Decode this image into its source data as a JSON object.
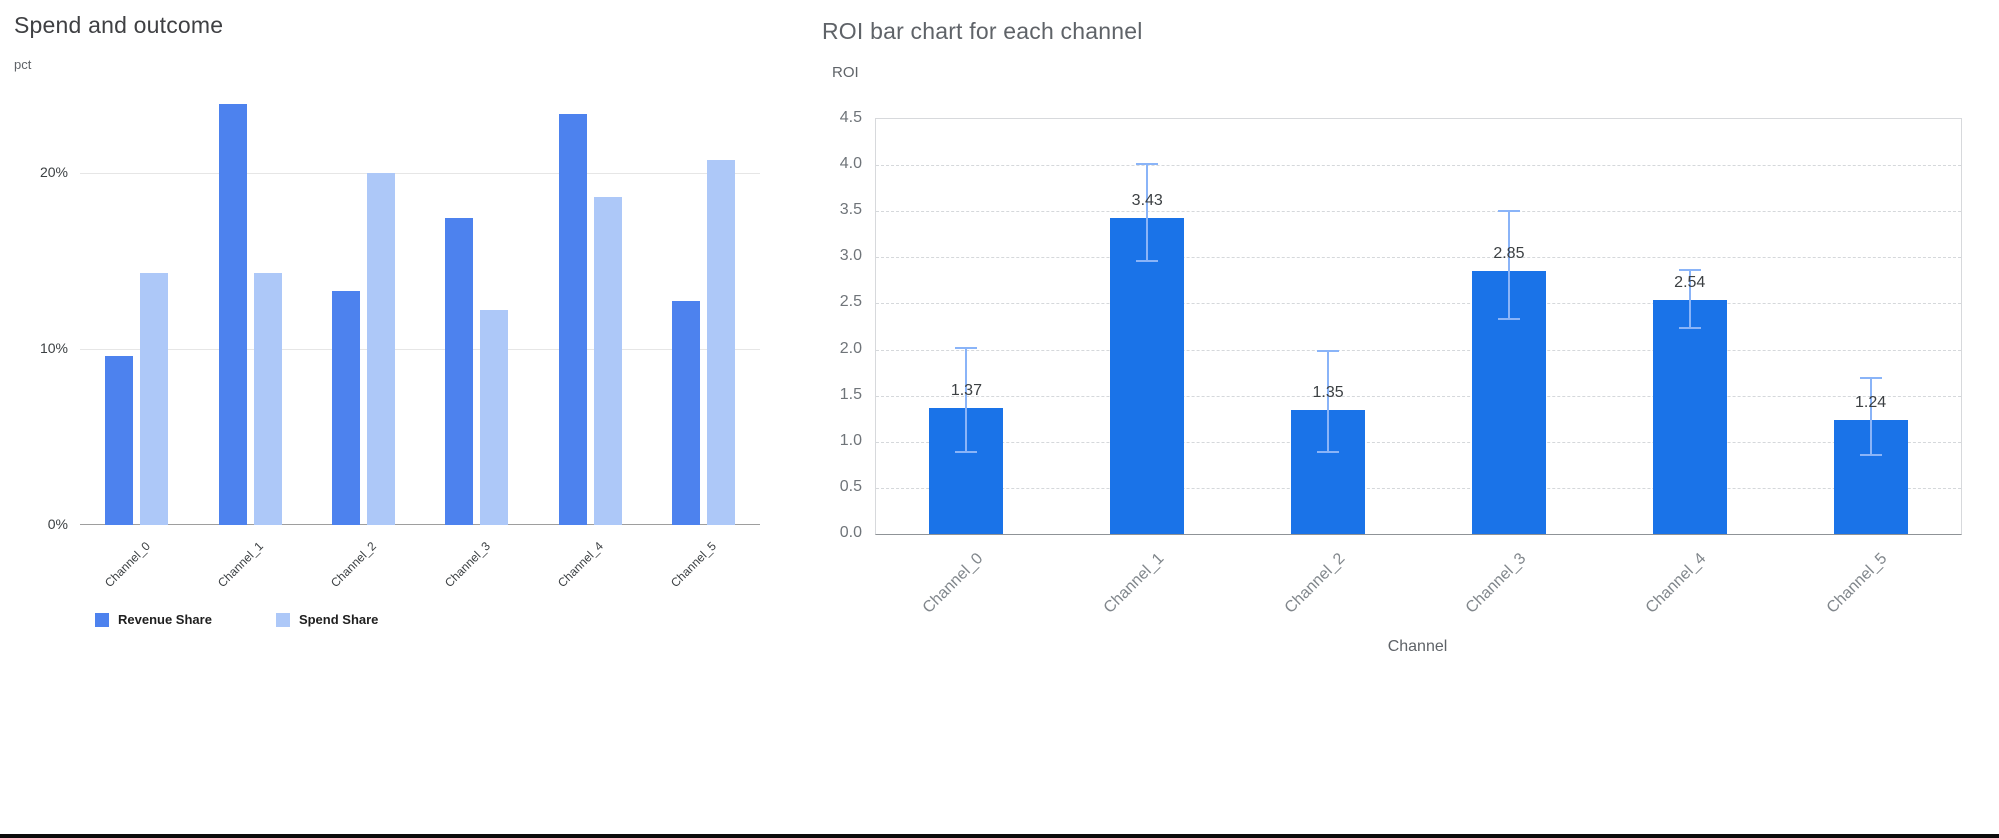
{
  "chart_data": [
    {
      "type": "bar",
      "title": "Spend and outcome",
      "ylabel": "pct",
      "xlabel": "",
      "categories": [
        "Channel_0",
        "Channel_1",
        "Channel_2",
        "Channel_3",
        "Channel_4",
        "Channel_5"
      ],
      "series": [
        {
          "name": "Revenue Share",
          "color": "#4d82ee",
          "values": [
            9.6,
            23.9,
            13.3,
            17.4,
            23.3,
            12.7
          ]
        },
        {
          "name": "Spend Share",
          "color": "#adc8f8",
          "values": [
            14.3,
            14.3,
            20.0,
            12.2,
            18.6,
            20.7
          ]
        }
      ],
      "value_unit": "%",
      "ylim": [
        0,
        24.4
      ],
      "yticks": [
        {
          "value": 0,
          "label": "0%"
        },
        {
          "value": 10,
          "label": "10%"
        },
        {
          "value": 20,
          "label": "20%"
        }
      ],
      "grid": true,
      "legend_position": "bottom"
    },
    {
      "type": "bar",
      "title": "ROI bar chart for each channel",
      "xlabel": "Channel",
      "ylabel": "ROI",
      "categories": [
        "Channel_0",
        "Channel_1",
        "Channel_2",
        "Channel_3",
        "Channel_4",
        "Channel_5"
      ],
      "values": [
        1.37,
        3.43,
        1.35,
        2.85,
        2.54,
        1.24
      ],
      "error_low": [
        0.88,
        2.95,
        0.88,
        2.32,
        2.22,
        0.85
      ],
      "error_high": [
        2.03,
        4.02,
        1.99,
        3.51,
        2.87,
        1.7
      ],
      "ylim": [
        0,
        4.5
      ],
      "ytick_step": 0.5,
      "bar_color": "#1a73e8",
      "error_color": "#8ab4f8",
      "grid": "dashed-horizontal",
      "legend_position": "none"
    }
  ]
}
